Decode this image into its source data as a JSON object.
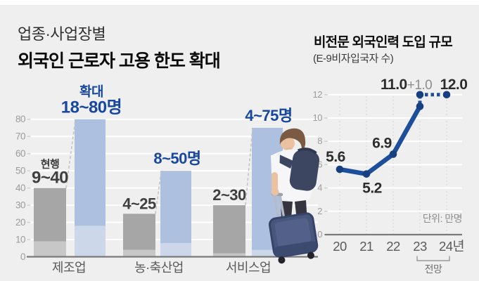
{
  "header": {
    "kicker": "업종·사업장별",
    "title": "외국인 근로자 고용 한도 확대"
  },
  "right_header": {
    "title": "비전문 외국인력 도입 규모",
    "subtitle": "(E-9비자입국자 수)"
  },
  "colors": {
    "background": "#efeff0",
    "accent_blue_text": "#17479e",
    "line_blue": "#1d4e9c",
    "dot_navy": "#16407f",
    "bar_blue_dark": "#adc0df",
    "bar_blue_light": "#ccd7e9",
    "bar_gray_dark": "#a6a6a6",
    "bar_gray_light": "#c7c7c7",
    "axis_gray": "#7a7a7a",
    "grid_white": "#ffffff",
    "dashed_gray": "#c3c3c3",
    "label_dark": "#3f3f3f",
    "tick_gray": "#9c9c9c",
    "cat_gray": "#5a5a5a",
    "value_dark": "#2d2d2d",
    "muted_gray": "#8d8d8d"
  },
  "chart_data": [
    {
      "type": "bar",
      "title": "업종·사업장별 외국인 근로자 고용 한도 확대",
      "categories": [
        "제조업",
        "농·축산업",
        "서비스업"
      ],
      "series": [
        {
          "name": "현행",
          "ranges": [
            [
              9,
              40
            ],
            [
              4,
              25
            ],
            [
              2,
              30
            ]
          ],
          "labels": [
            "9~40",
            "4~25",
            "2~30"
          ]
        },
        {
          "name": "확대",
          "ranges": [
            [
              18,
              80
            ],
            [
              8,
              50
            ],
            [
              4,
              75
            ]
          ],
          "labels": [
            "18~80명",
            "8~50명",
            "4~75명"
          ]
        }
      ],
      "ylim": [
        0,
        80
      ],
      "yticks": [
        0,
        10,
        20,
        30,
        40,
        50,
        60,
        70,
        80
      ],
      "grid": true,
      "legend_position": "above-bars"
    },
    {
      "type": "line",
      "title": "비전문 외국인력 도입 규모",
      "subtitle": "(E-9비자입국자 수)",
      "x": [
        "20",
        "21",
        "22",
        "23",
        "24년"
      ],
      "values": [
        5.6,
        5.2,
        6.9,
        11.0,
        12.0
      ],
      "point_labels": [
        "5.6",
        "5.2",
        "6.9",
        "11.0",
        "12.0"
      ],
      "increase_label": "+1.0",
      "dashed_from_index": 3,
      "ylim": [
        0,
        12
      ],
      "yticks": [
        0,
        2,
        4,
        6,
        8,
        10,
        12
      ],
      "grid": true,
      "unit_label": "단위: 만명",
      "forecast_label": "전망",
      "forecast_span": [
        3,
        4
      ]
    }
  ]
}
